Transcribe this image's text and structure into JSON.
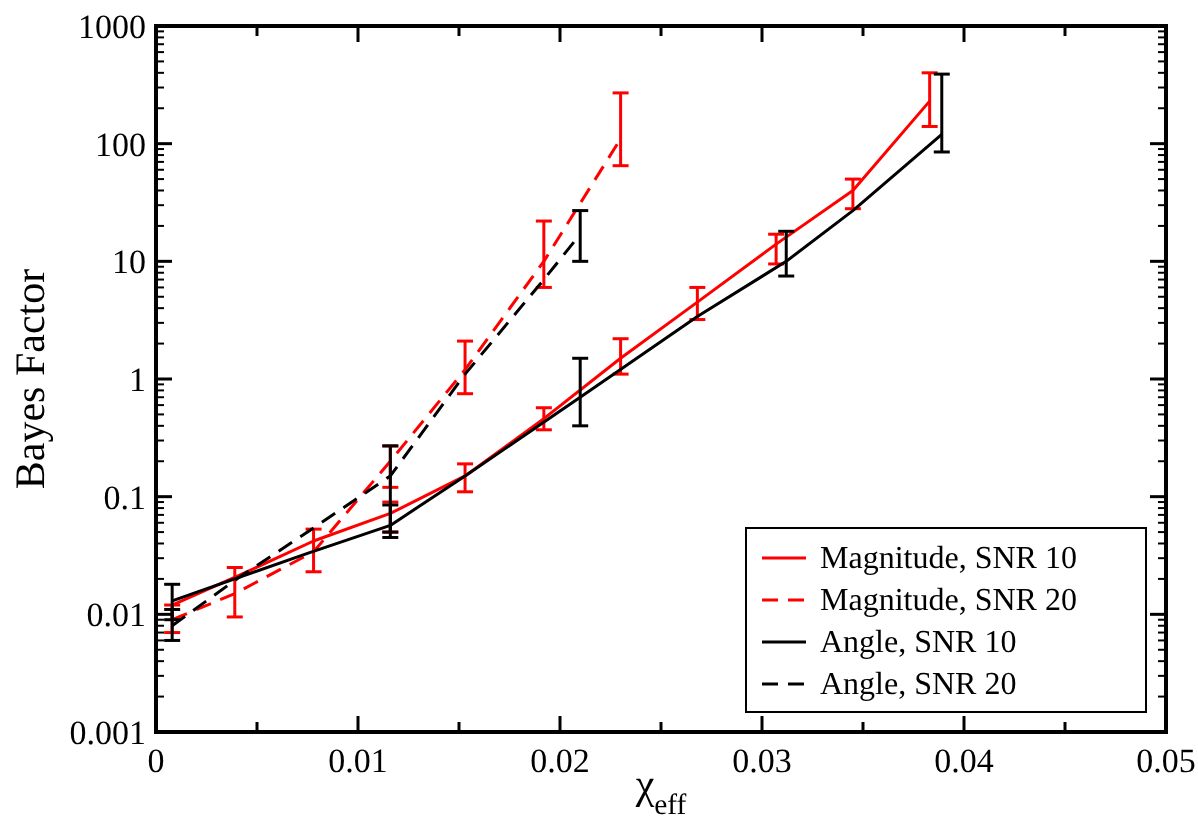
{
  "chart_data": {
    "type": "line",
    "xlabel": "χ$_{eff}$",
    "ylabel": "Bayes Factor",
    "log": "y",
    "xlim": [
      0,
      0.05
    ],
    "ylim": [
      0.001,
      1000
    ],
    "xticks": [
      0,
      {
        "value": 0.005,
        "label": null
      },
      0.01,
      {
        "value": 0.015,
        "label": null
      },
      0.02,
      {
        "value": 0.025,
        "label": null
      },
      0.03,
      {
        "value": 0.035,
        "label": null
      },
      0.04,
      {
        "value": 0.045,
        "label": null
      },
      0.05
    ],
    "yticks": [
      0.001,
      0.01,
      0.1,
      1,
      10,
      100,
      1000
    ],
    "grid": false,
    "legend": "bottom right",
    "marker": "none",
    "series": [
      {
        "name": "Magnitude, SNR 10",
        "color": "#ff0000",
        "line_style": "solid",
        "x": [
          0.0008,
          0.004,
          0.0078,
          0.0116,
          0.0153,
          0.0192,
          0.023,
          0.0268,
          0.0307,
          0.0345,
          0.0383
        ],
        "values": [
          0.012,
          0.021,
          0.042,
          0.072,
          0.15,
          0.46,
          1.5,
          4.5,
          14,
          40,
          230
        ],
        "errors": [
          null,
          null,
          null,
          [
            0.05,
            0.09
          ],
          [
            0.11,
            0.19
          ],
          [
            0.37,
            0.57
          ],
          [
            1.1,
            2.2
          ],
          [
            3.2,
            6
          ],
          [
            9.5,
            17
          ],
          [
            28,
            50
          ],
          [
            140,
            400
          ]
        ]
      },
      {
        "name": "Magnitude, SNR 20",
        "color": "#ff0000",
        "line_style": "dashed",
        "x": [
          0.0008,
          0.0039,
          0.0078,
          0.0116,
          0.0153,
          0.0192,
          0.023
        ],
        "values": [
          0.009,
          0.015,
          0.034,
          0.2,
          1.2,
          10,
          110
        ],
        "errors": [
          [
            0.007,
            0.012
          ],
          [
            0.0095,
            0.025
          ],
          [
            0.023,
            0.053
          ],
          [
            0.12,
            0.27
          ],
          [
            0.75,
            2.1
          ],
          [
            6,
            22
          ],
          [
            65,
            270
          ]
        ]
      },
      {
        "name": "Angle, SNR 10",
        "color": "#000000",
        "line_style": "solid",
        "x": [
          0.0008,
          0.0075,
          0.0116,
          0.0153,
          0.021,
          0.0268,
          0.0312,
          0.0345,
          0.0389
        ],
        "values": [
          0.013,
          0.033,
          0.057,
          0.15,
          0.7,
          3.4,
          10,
          27,
          120
        ],
        "errors": [
          [
            0.009,
            0.011
          ],
          null,
          [
            0.045,
            0.085
          ],
          null,
          [
            0.4,
            1.5
          ],
          null,
          [
            7.5,
            18
          ],
          null,
          [
            85,
            390
          ]
        ]
      },
      {
        "name": "Angle, SNR 20",
        "color": "#000000",
        "line_style": "dashed",
        "x": [
          0.0008,
          0.004,
          0.0075,
          0.0116,
          0.0153,
          0.0192,
          0.021
        ],
        "values": [
          0.008,
          0.02,
          0.05,
          0.15,
          1.1,
          7,
          17
        ],
        "errors": [
          [
            0.006,
            0.018
          ],
          null,
          null,
          [
            0.05,
            0.27
          ],
          null,
          null,
          [
            10,
            27
          ]
        ]
      }
    ]
  }
}
